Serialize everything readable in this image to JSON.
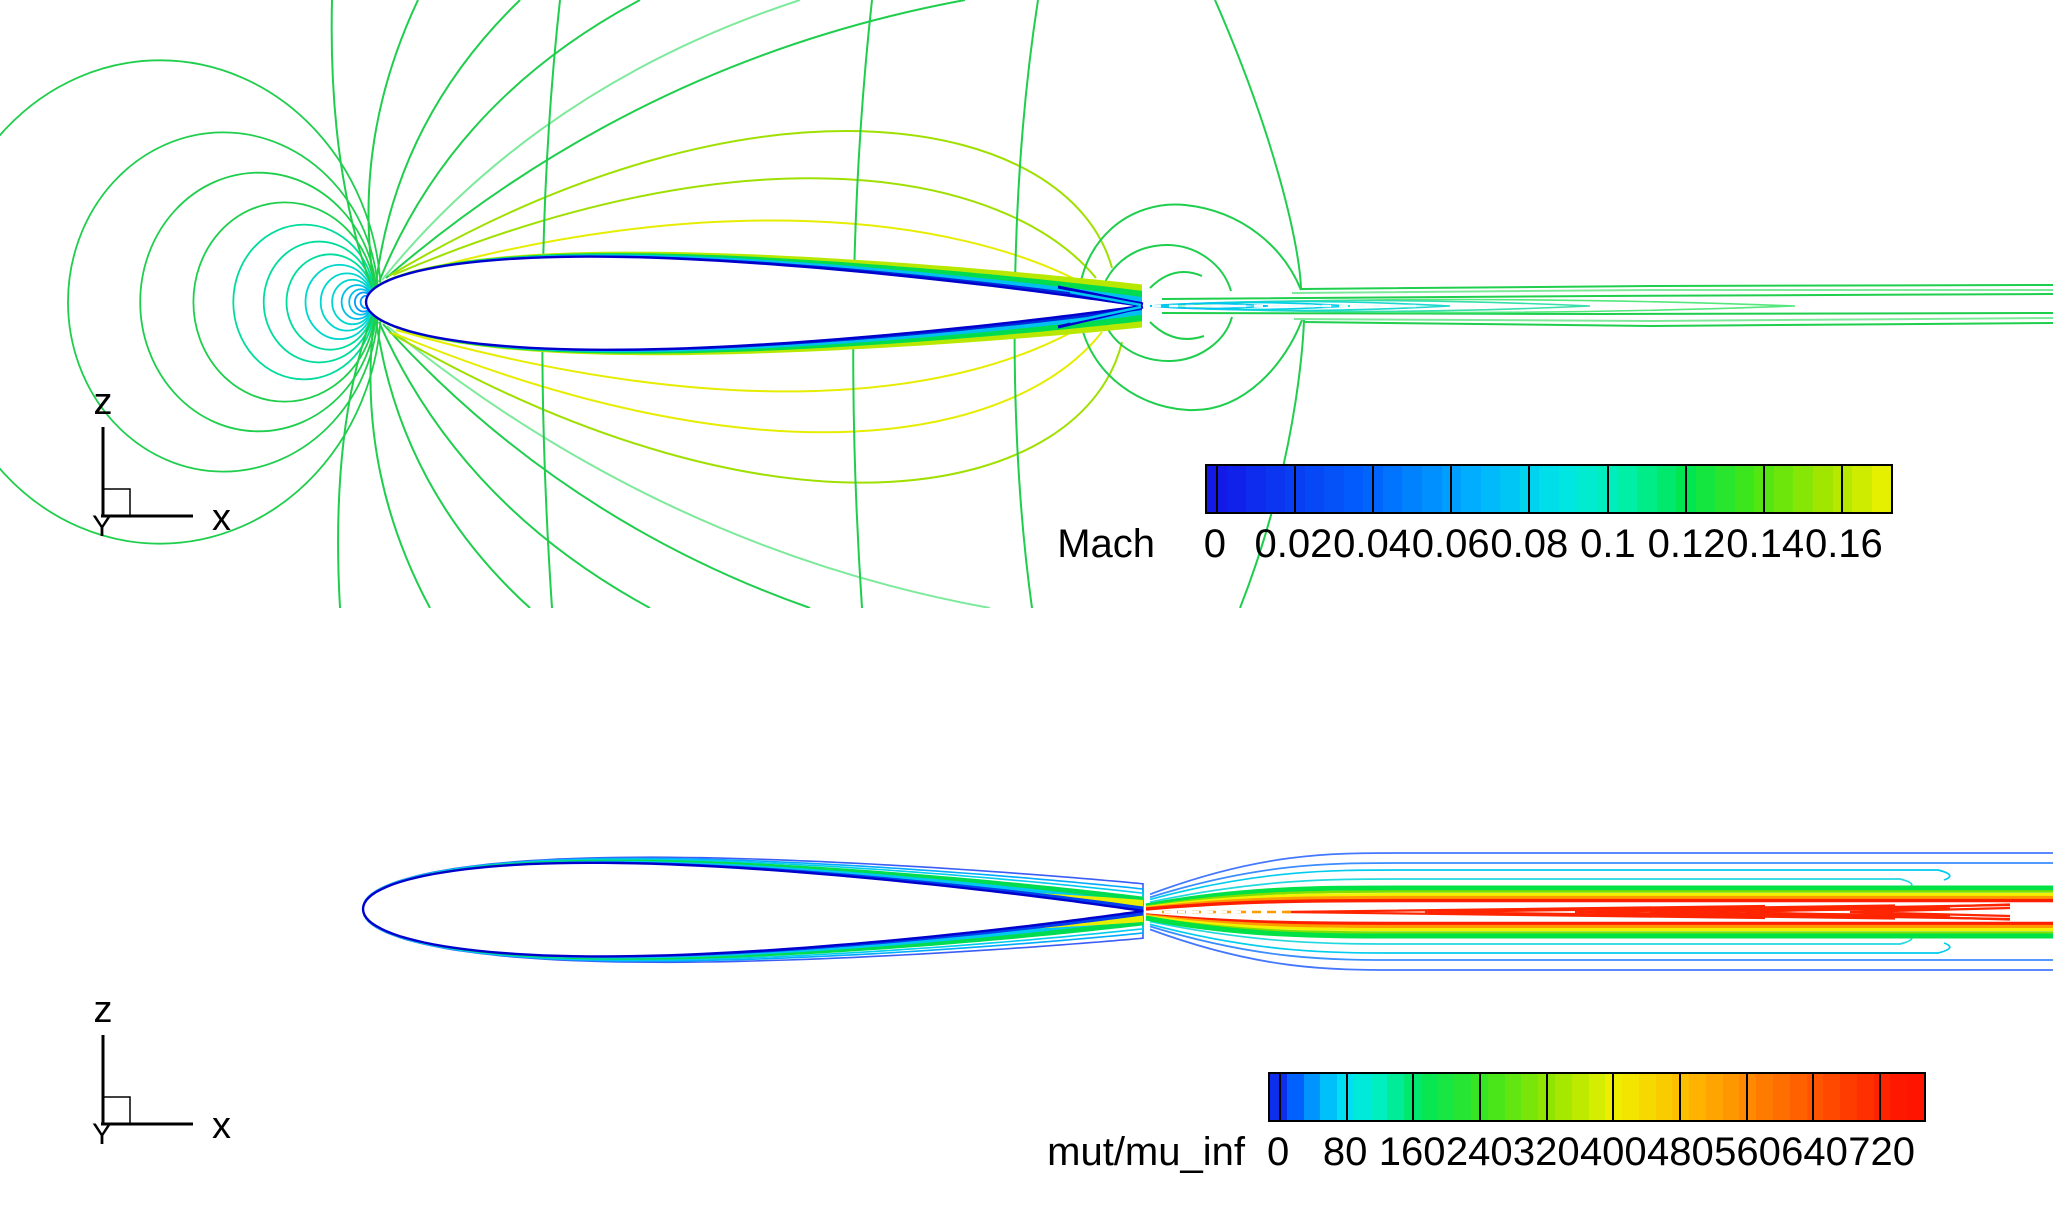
{
  "figure": {
    "background": "#ffffff",
    "description": "CFD contour-line plots of flow past a symmetric airfoil: Mach number field (top) and turbulent viscosity ratio mut/mu_inf (bottom), each with a horizontal rainbow color legend and a z-x axis orientation marker"
  },
  "top_plot": {
    "legend": {
      "title": "Mach",
      "tick_labels": [
        "0",
        "0.02",
        "0.04",
        "0.06",
        "0.08",
        "0.1",
        "0.12",
        "0.14",
        "0.16"
      ]
    },
    "axis_indicator": {
      "up": "z",
      "right": "x",
      "origin": "Y"
    }
  },
  "bottom_plot": {
    "legend": {
      "title": "mut/mu_inf",
      "tick_labels": [
        "0",
        "80",
        "160",
        "240",
        "320",
        "400",
        "480",
        "560",
        "640",
        "720"
      ]
    },
    "axis_indicator": {
      "up": "z",
      "right": "x",
      "origin": "Y"
    }
  },
  "chart_data": [
    {
      "type": "contour",
      "variable": "Mach",
      "title": "",
      "labeled_levels": [
        0,
        0.02,
        0.04,
        0.06,
        0.08,
        0.1,
        0.12,
        0.14,
        0.16
      ],
      "level_step": 0.005,
      "colorbar_range": [
        -0.0025,
        0.1725
      ],
      "colormap_stops": [
        [
          0,
          "#1414e6"
        ],
        [
          0.24,
          "#0064ff"
        ],
        [
          0.4,
          "#00b4ff"
        ],
        [
          0.52,
          "#00e6e6"
        ],
        [
          0.6,
          "#00f0b4"
        ],
        [
          0.7,
          "#00e650"
        ],
        [
          0.8,
          "#46e614"
        ],
        [
          0.9,
          "#a0e600"
        ],
        [
          1,
          "#f0f000"
        ]
      ],
      "legend_position": "bottom-right horizontal",
      "axes": {
        "horizontal": "x",
        "vertical": "z"
      },
      "grid": false,
      "scene": "Mach contour lines around a symmetric airfoil at low freestream Mach: nested stagnation rings ahead of the leading edge (green to cyan to blue), contour fan radiating from the nose, large green/yellow lobes above and below the chord, thin boundary-layer bands on the surface, and a green/teal wake with closed lens contours stretching to the right edge"
    },
    {
      "type": "contour",
      "variable": "mut/mu_inf",
      "title": "",
      "labeled_levels": [
        0,
        80,
        160,
        240,
        320,
        400,
        480,
        560,
        640,
        720
      ],
      "level_step": 20,
      "colorbar_range": [
        -12,
        773
      ],
      "colormap_stops": [
        [
          0,
          "#1414e6"
        ],
        [
          0.04,
          "#0064ff"
        ],
        [
          0.08,
          "#00b4ff"
        ],
        [
          0.12,
          "#00e6f0"
        ],
        [
          0.17,
          "#00f0be"
        ],
        [
          0.23,
          "#00e65a"
        ],
        [
          0.33,
          "#3ce61e"
        ],
        [
          0.43,
          "#96e600"
        ],
        [
          0.53,
          "#f0f000"
        ],
        [
          0.65,
          "#ffb400"
        ],
        [
          0.8,
          "#ff6400"
        ],
        [
          0.97,
          "#ff1400"
        ],
        [
          1,
          "#ff1400"
        ]
      ],
      "legend_position": "bottom-right horizontal",
      "axes": {
        "horizontal": "x",
        "vertical": "z"
      },
      "grid": false,
      "scene": "Turbulent viscosity ratio contours: clean far field, thin blue/cyan/green boundary-layer bands hugging the airfoil, and a turbulent wake behind the trailing edge that spreads into parallel rainbow bands (blue outermost through cyan, green, yellow, orange to a red core) with nested red chevron contours along the white wake centerline"
    }
  ],
  "palette": {
    "airfoil_outline": "#0000cc",
    "contour_green": "#1fce4c",
    "contour_green_pale": "#7dea9b",
    "contour_yellow_green": "#9fe000",
    "contour_yellow": "#e6ed00",
    "contour_teal": "#00dc9c",
    "contour_cyan": "#00d2e8",
    "wake_red": "#ff1e00",
    "wake_orange": "#ff9a00",
    "wake_yellow": "#f2f200",
    "wake_green": "#00e146",
    "wake_cyan": "#00ccee",
    "wake_blue": "#4477ff"
  }
}
